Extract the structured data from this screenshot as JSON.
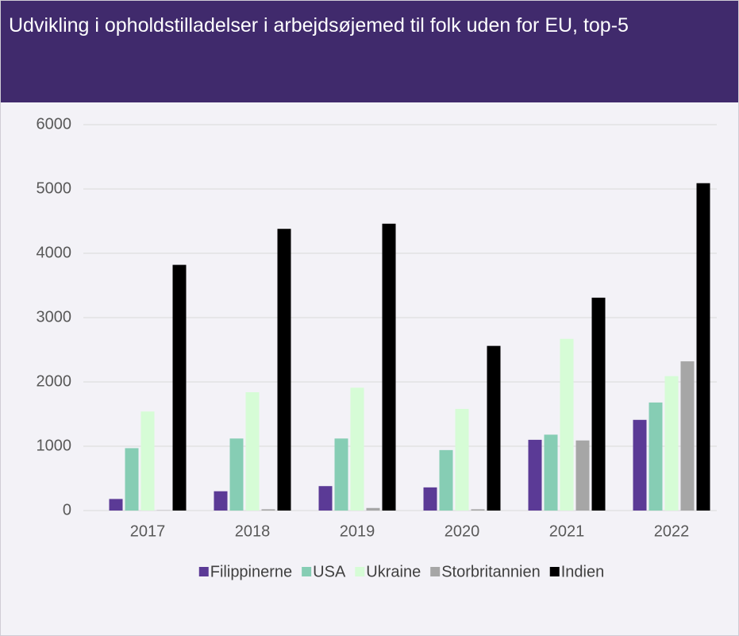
{
  "chart_data": {
    "type": "bar",
    "title": "Udvikling i opholdstilladelser i arbejdsøjemed til folk uden for EU, top-5",
    "categories": [
      "2017",
      "2018",
      "2019",
      "2020",
      "2021",
      "2022"
    ],
    "series": [
      {
        "name": "Filippinerne",
        "color": "#5b3a96",
        "values": [
          180,
          300,
          380,
          360,
          1100,
          1410
        ]
      },
      {
        "name": "USA",
        "color": "#86cdb4",
        "values": [
          970,
          1120,
          1120,
          940,
          1180,
          1680
        ]
      },
      {
        "name": "Ukraine",
        "color": "#d6fcd6",
        "values": [
          1540,
          1840,
          1910,
          1580,
          2670,
          2090
        ]
      },
      {
        "name": "Storbritannien",
        "color": "#a6a6a6",
        "values": [
          5,
          20,
          40,
          20,
          1090,
          2320
        ]
      },
      {
        "name": "Indien",
        "color": "#000000",
        "values": [
          3820,
          4380,
          4460,
          2560,
          3310,
          5090
        ]
      }
    ],
    "ylim": [
      0,
      6000
    ],
    "yticks": [
      0,
      1000,
      2000,
      3000,
      4000,
      5000,
      6000
    ],
    "grid": true,
    "legend": "bottom"
  }
}
